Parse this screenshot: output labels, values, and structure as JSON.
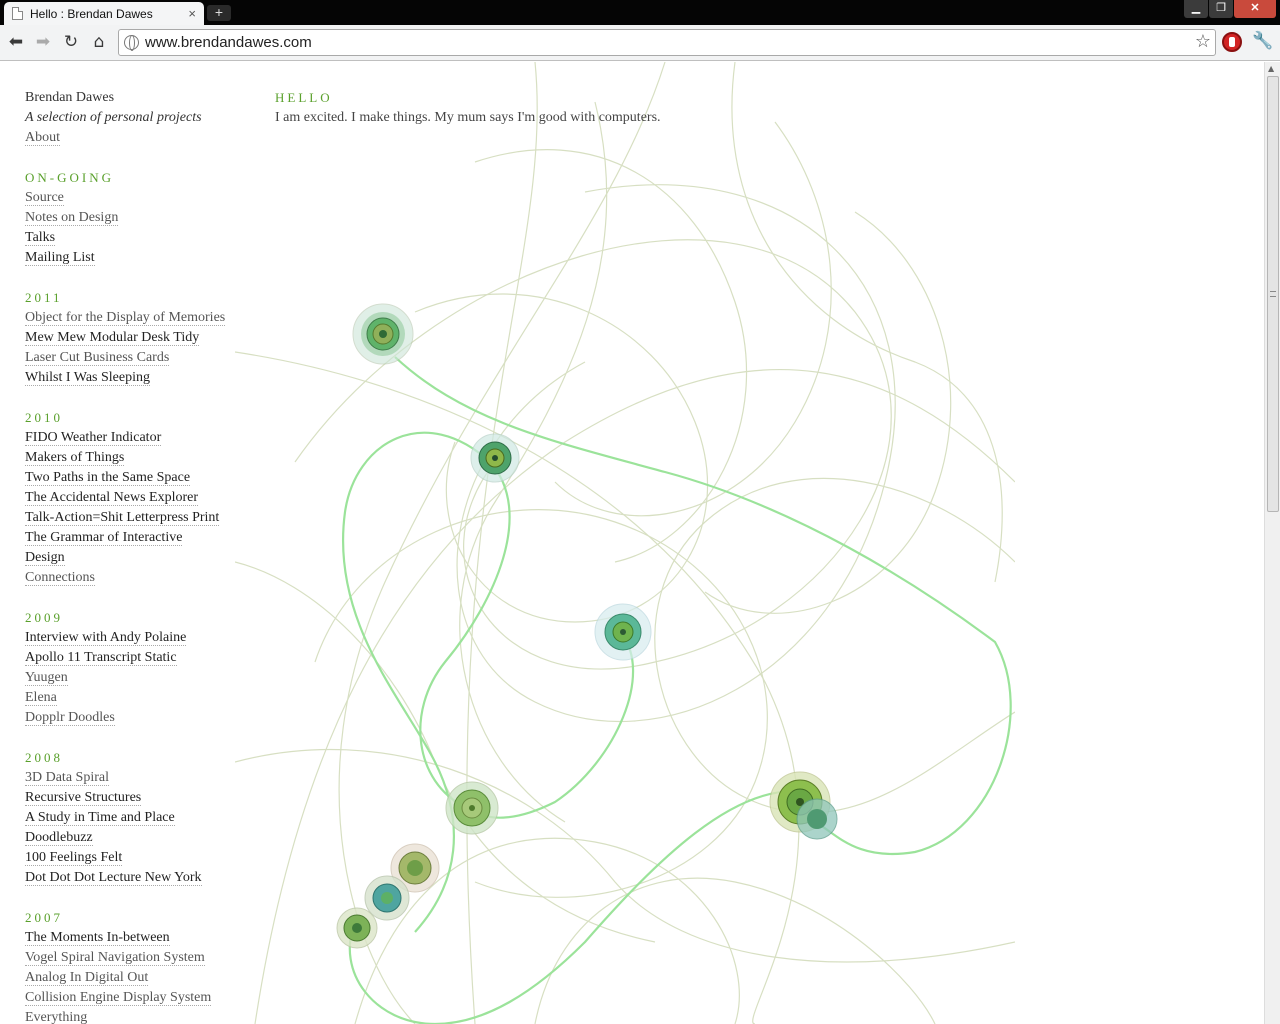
{
  "browser": {
    "tab_title": "Hello : Brendan Dawes",
    "tab_close": "×",
    "new_tab": "+",
    "url": "www.brendandawes.com",
    "icons": {
      "back": "back-arrow-icon",
      "forward": "forward-arrow-icon",
      "reload": "reload-icon",
      "home": "home-icon",
      "star": "bookmark-star-icon",
      "extension": "stop-hand-icon",
      "wrench": "wrench-icon"
    }
  },
  "sidebar": {
    "site_name": "Brendan Dawes",
    "tagline": "A selection of personal projects",
    "about": "About",
    "sections": [
      {
        "heading": "ON-GOING",
        "items": [
          "Source",
          "Notes on Design",
          "Talks",
          "Mailing List"
        ]
      },
      {
        "heading": "2011",
        "items": [
          "Object for the Display of Memories",
          "Mew Mew Modular Desk Tidy",
          "Laser Cut Business Cards",
          "Whilst I Was Sleeping"
        ]
      },
      {
        "heading": "2010",
        "items": [
          "FIDO Weather Indicator",
          "Makers of Things",
          "Two Paths in the Same Space",
          "The Accidental News Explorer",
          "Talk-Action=Shit Letterpress Print",
          "The Grammar of Interactive Design",
          "Connections"
        ]
      },
      {
        "heading": "2009",
        "items": [
          "Interview with Andy Polaine",
          "Apollo 11 Transcript Static",
          "Yuugen",
          "Elena",
          "Dopplr Doodles"
        ]
      },
      {
        "heading": "2008",
        "items": [
          "3D Data Spiral",
          "Recursive Structures",
          "A Study in Time and Place",
          "Doodlebuzz",
          "100 Feelings Felt",
          "Dot Dot Dot Lecture New York"
        ]
      },
      {
        "heading": "2007",
        "items": [
          "The Moments In-between",
          "Vogel Spiral Navigation System",
          "Analog In Digital Out",
          "Collision Engine Display System",
          "Everything"
        ]
      }
    ]
  },
  "intro": {
    "heading": "HELLO",
    "text": "I am excited. I make things. My mum says I'm good with computers."
  },
  "colors": {
    "accent": "#5aa02c",
    "bright_line": "#8de08a",
    "faint_line": "#d3dcbc"
  }
}
